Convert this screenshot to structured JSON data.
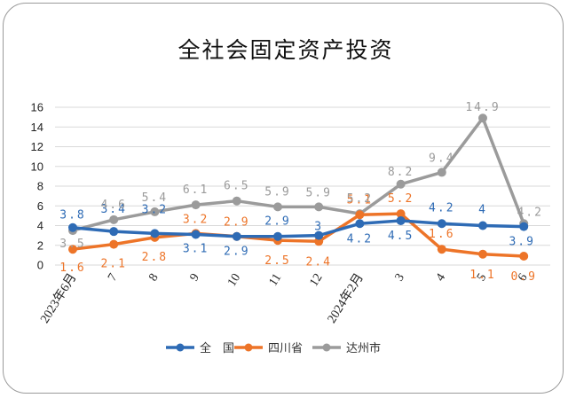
{
  "chart_data": {
    "type": "line",
    "title": "全社会固定资产投资",
    "categories": [
      "2023年6月",
      "7",
      "8",
      "9",
      "10",
      "11",
      "12",
      "2024年2月",
      "3",
      "4",
      "5",
      "6"
    ],
    "ylim": [
      0,
      16
    ],
    "yticks": [
      "0",
      "2",
      "4",
      "6",
      "8",
      "10",
      "12",
      "14",
      "16"
    ],
    "grid": true,
    "legend_position": "bottom",
    "series": [
      {
        "name": "全　国",
        "color": "#2e6bb5",
        "values": [
          3.8,
          3.4,
          3.2,
          3.1,
          2.9,
          2.9,
          3,
          4.2,
          4.5,
          4.2,
          4,
          3.9
        ],
        "labels": [
          "3.8",
          "3.4",
          "3.2",
          "3.1",
          "2.9",
          "2.9",
          "3",
          "4.2",
          "4.5",
          "4.2",
          "4",
          "3.9"
        ]
      },
      {
        "name": "四川省",
        "color": "#ed7428",
        "values": [
          1.6,
          2.1,
          2.8,
          3.2,
          2.9,
          2.5,
          2.4,
          5.1,
          5.2,
          1.6,
          1.1,
          0.9
        ],
        "labels": [
          "1.6",
          "2.1",
          "2.8",
          "3.2",
          "2.9",
          "2.5",
          "2.4",
          "5.1",
          "5.2",
          "1.6",
          "1.1",
          "0.9"
        ]
      },
      {
        "name": "达州市",
        "color": "#9b9b9b",
        "values": [
          3.5,
          4.6,
          5.4,
          6.1,
          6.5,
          5.9,
          5.9,
          5.2,
          8.2,
          9.4,
          14.9,
          4.2
        ],
        "labels": [
          "3.5",
          "4.6",
          "5.4",
          "6.1",
          "6.5",
          "5.9",
          "5.9",
          "5.2",
          "8.2",
          "9.4",
          "14.9",
          "4.2"
        ]
      }
    ]
  }
}
